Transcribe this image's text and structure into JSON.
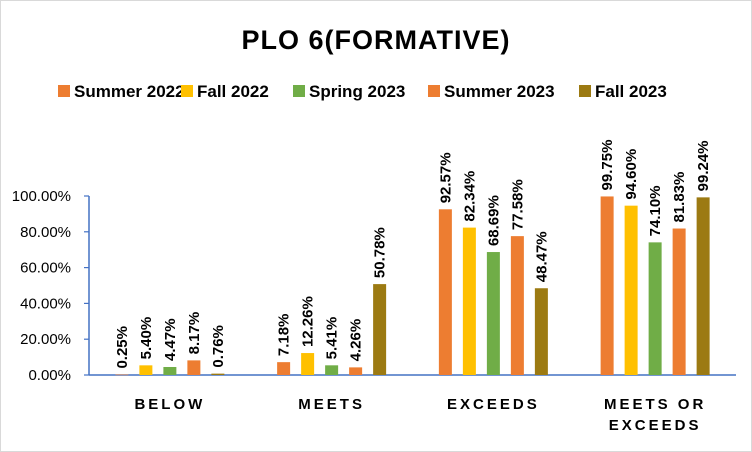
{
  "chart_data": {
    "type": "bar",
    "title": "PLO 6(FORMATIVE)",
    "xlabel": "",
    "ylabel": "",
    "ylim": [
      0,
      100
    ],
    "yticks": [
      "0.00%",
      "20.00%",
      "40.00%",
      "60.00%",
      "80.00%",
      "100.00%"
    ],
    "ytick_values": [
      0,
      20,
      40,
      60,
      80,
      100
    ],
    "grid": false,
    "legend_position": "top",
    "categories": [
      {
        "lines": [
          "BELOW"
        ]
      },
      {
        "lines": [
          "MEETS"
        ]
      },
      {
        "lines": [
          "EXCEEDS"
        ]
      },
      {
        "lines": [
          "MEETS OR",
          "EXCEEDS"
        ]
      }
    ],
    "series": [
      {
        "name": "Summer 2022",
        "color": "#ED7D31",
        "values": [
          0.25,
          7.18,
          92.57,
          99.75
        ],
        "labels": [
          "0.25%",
          "7.18%",
          "92.57%",
          "99.75%"
        ]
      },
      {
        "name": "Fall 2022",
        "color": "#FFC000",
        "values": [
          5.4,
          12.26,
          82.34,
          94.6
        ],
        "labels": [
          "5.40%",
          "12.26%",
          "82.34%",
          "94.60%"
        ]
      },
      {
        "name": "Spring 2023",
        "color": "#70AD47",
        "values": [
          4.47,
          5.41,
          68.69,
          74.1
        ],
        "labels": [
          "4.47%",
          "5.41%",
          "68.69%",
          "74.10%"
        ]
      },
      {
        "name": "Summer 2023",
        "color": "#ED7D31",
        "values": [
          8.17,
          4.26,
          77.58,
          81.83
        ],
        "labels": [
          "8.17%",
          "4.26%",
          "77.58%",
          "81.83%"
        ]
      },
      {
        "name": "Fall 2023",
        "color": "#9C7A12",
        "values": [
          0.76,
          50.78,
          48.47,
          99.24
        ],
        "labels": [
          "0.76%",
          "50.78%",
          "48.47%",
          "99.24%"
        ]
      }
    ]
  }
}
